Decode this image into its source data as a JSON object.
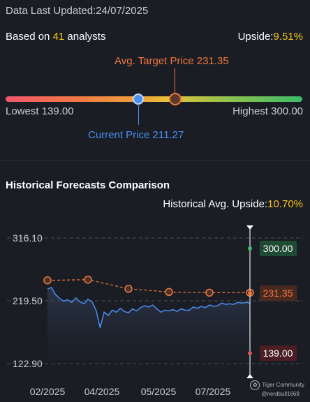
{
  "header": {
    "updated_prefix": "Data Last Updated:",
    "updated_date": "24/07/2025",
    "based_on_prefix": "Based on ",
    "analyst_count": "41",
    "based_on_suffix": " analysts",
    "upside_label": "Upside:",
    "upside_value": "9.51%"
  },
  "price_range": {
    "target_label": "Avg. Target Price 231.35",
    "lowest_label": "Lowest 139.00",
    "highest_label": "Highest 300.00",
    "current_label": "Current Price 211.27",
    "lowest": 139.0,
    "highest": 300.0,
    "current": 211.27,
    "target": 231.35
  },
  "historical": {
    "title": "Historical Forecasts Comparison",
    "avg_upside_label": "Historical Avg. Upside:",
    "avg_upside_value": "10.70%"
  },
  "chart_data": {
    "type": "line",
    "y_ticks": [
      "316.10",
      "219.50",
      "122.90"
    ],
    "x_ticks": [
      "02/2025",
      "04/2025",
      "05/2025",
      "07/2025"
    ],
    "ylim": [
      122.9,
      316.1
    ],
    "price_series": {
      "color": "#4a8ef0",
      "x": [
        0,
        2,
        4,
        6,
        8,
        10,
        12,
        14,
        16,
        18,
        20,
        22,
        24,
        26,
        28,
        30,
        32,
        34,
        36,
        38,
        40,
        42,
        44,
        46,
        48,
        50,
        52,
        54,
        56,
        58,
        60,
        62,
        64,
        66,
        68,
        70,
        72,
        74,
        76,
        78,
        80,
        82,
        84,
        86,
        88,
        90,
        92,
        94,
        96,
        98,
        100
      ],
      "values": [
        238,
        240,
        229,
        223,
        219,
        221,
        217,
        224,
        218,
        215,
        222,
        218,
        205,
        178,
        202,
        197,
        205,
        202,
        208,
        203,
        201,
        207,
        204,
        209,
        212,
        210,
        213,
        207,
        202,
        205,
        204,
        206,
        203,
        207,
        205,
        205,
        210,
        208,
        211,
        209,
        213,
        211,
        212,
        216,
        214,
        215,
        214,
        217,
        216,
        217,
        216
      ]
    },
    "target_series": {
      "name": "Avg. Target",
      "color": "#f0773e",
      "x": [
        0,
        20,
        40,
        60,
        80,
        100
      ],
      "values": [
        251,
        252,
        238,
        233,
        232,
        232
      ]
    },
    "markers": {
      "high": "300.00",
      "target": "231.35",
      "low": "139.00"
    },
    "high_value": 300.0,
    "low_value": 139.0,
    "target_value": 231.35
  },
  "watermark": {
    "brand": "Tiger Community",
    "handle": "@nerdbull1669"
  }
}
